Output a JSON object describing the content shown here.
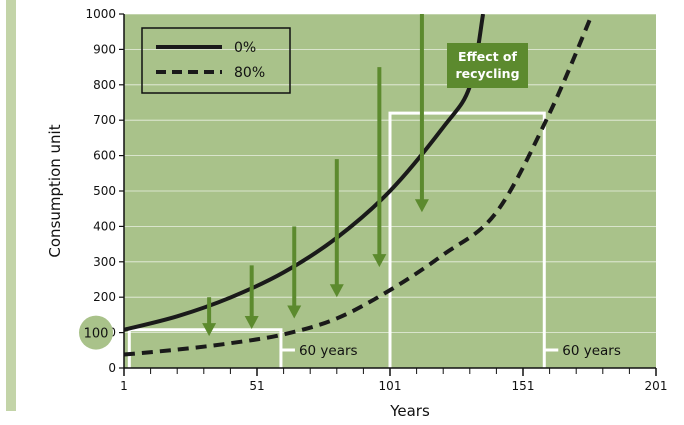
{
  "chart_data": {
    "type": "line",
    "xlabel": "Years",
    "ylabel": "Consumption unit",
    "xlim": [
      1,
      201
    ],
    "ylim": [
      0,
      1000
    ],
    "x_ticks": [
      1,
      51,
      101,
      151,
      201
    ],
    "y_ticks": [
      0,
      100,
      200,
      300,
      400,
      500,
      600,
      700,
      800,
      900,
      1000
    ],
    "grid": true,
    "legend_position": "top-left",
    "background_color": "#a9c28a",
    "series": [
      {
        "name": "0%",
        "style": "solid",
        "color": "#1a1a1a",
        "x": [
          1,
          21,
          41,
          61,
          81,
          101,
          121,
          131,
          136
        ],
        "y": [
          108,
          146,
          199,
          270,
          368,
          500,
          680,
          795,
          1000
        ]
      },
      {
        "name": "80%",
        "style": "dashed",
        "color": "#1a1a1a",
        "x": [
          1,
          21,
          41,
          61,
          81,
          101,
          121,
          141,
          161,
          177
        ],
        "y": [
          38,
          52,
          70,
          95,
          140,
          220,
          320,
          440,
          720,
          1000
        ]
      }
    ],
    "annotations": {
      "recycling_label": [
        "Effect of",
        "recycling"
      ],
      "recycling_color": "#5c8a2e",
      "recycling_arrows": [
        {
          "x": 33,
          "y_from": 200,
          "y_to": 90
        },
        {
          "x": 49,
          "y_from": 290,
          "y_to": 110
        },
        {
          "x": 65,
          "y_from": 400,
          "y_to": 140
        },
        {
          "x": 81,
          "y_from": 590,
          "y_to": 200
        },
        {
          "x": 97,
          "y_from": 850,
          "y_to": 285
        },
        {
          "x": 113,
          "y_from": 1000,
          "y_to": 440
        }
      ],
      "periods": [
        {
          "label": "60 years",
          "x_start": 3,
          "x_end": 60,
          "y": 108
        },
        {
          "label": "60 years",
          "x_start": 101,
          "x_end": 159,
          "y": 720
        }
      ],
      "highlight_value": "100",
      "highlight_color": "#a9c28a"
    }
  }
}
